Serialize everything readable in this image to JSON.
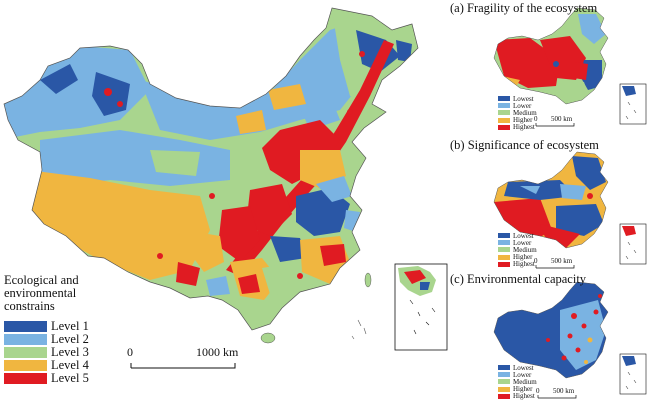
{
  "main_map": {
    "legend_title": "Ecological and environmental constrains",
    "legend": [
      {
        "label": "Level 1",
        "color": "#2a57a6"
      },
      {
        "label": "Level 2",
        "color": "#7ab3e2"
      },
      {
        "label": "Level 3",
        "color": "#a9d58e"
      },
      {
        "label": "Level 4",
        "color": "#f0b640"
      },
      {
        "label": "Level 5",
        "color": "#e01b22"
      }
    ],
    "scale_start": "0",
    "scale_end": "1000 km"
  },
  "panels": [
    {
      "title": "(a) Fragility of the ecosystem",
      "legend": [
        {
          "label": "Lowest",
          "color": "#2a57a6"
        },
        {
          "label": "Lower",
          "color": "#7ab3e2"
        },
        {
          "label": "Medium",
          "color": "#a9d58e"
        },
        {
          "label": "Higher",
          "color": "#f0b640"
        },
        {
          "label": "Highest",
          "color": "#e01b22"
        }
      ],
      "scale_start": "0",
      "scale_end": "500 km"
    },
    {
      "title": "(b) Significance of ecosystem",
      "legend": [
        {
          "label": "Lowest",
          "color": "#2a57a6"
        },
        {
          "label": "Lower",
          "color": "#7ab3e2"
        },
        {
          "label": "Medium",
          "color": "#a9d58e"
        },
        {
          "label": "Higher",
          "color": "#f0b640"
        },
        {
          "label": "Highest",
          "color": "#e01b22"
        }
      ],
      "scale_start": "0",
      "scale_end": "500 km"
    },
    {
      "title": "(c) Environmental capacity",
      "legend": [
        {
          "label": "Lowest",
          "color": "#2a57a6"
        },
        {
          "label": "Lower",
          "color": "#7ab3e2"
        },
        {
          "label": "Medium",
          "color": "#a9d58e"
        },
        {
          "label": "Higher",
          "color": "#f0b640"
        },
        {
          "label": "Highest",
          "color": "#e01b22"
        }
      ],
      "scale_start": "0",
      "scale_end": "500 km"
    }
  ]
}
